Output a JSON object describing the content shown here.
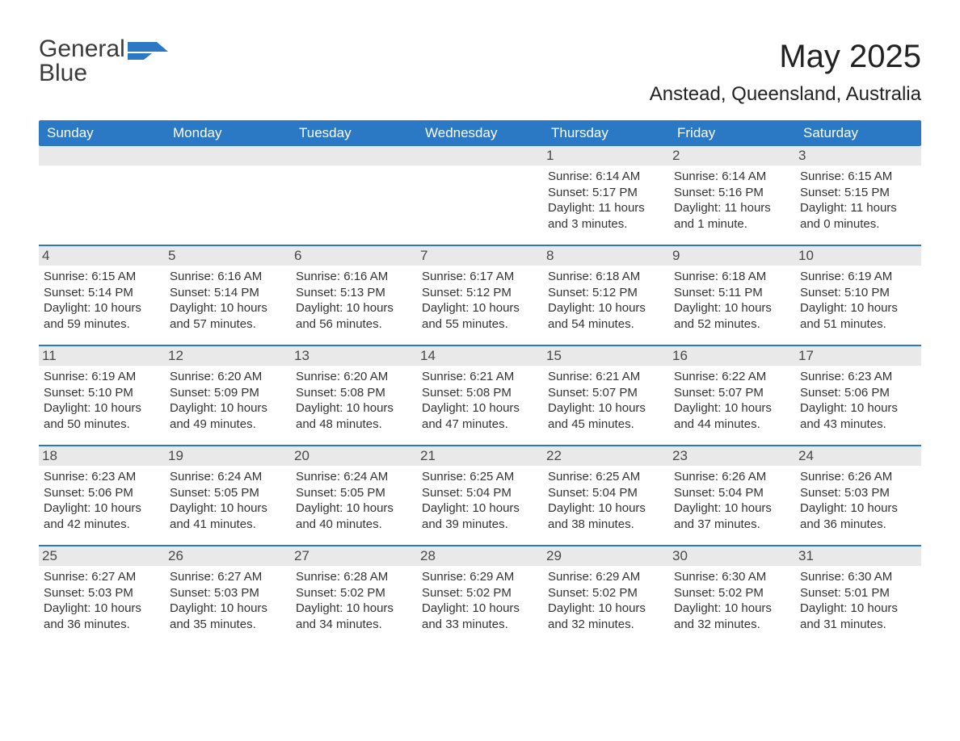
{
  "logo": {
    "text1": "General",
    "text2": "Blue",
    "text1_color": "#3b3b3b",
    "text2_color": "#2b78c4",
    "flag_color": "#2b78c4"
  },
  "title": "May 2025",
  "subtitle": "Anstead, Queensland, Australia",
  "colors": {
    "header_bg": "#2b78c4",
    "header_text": "#ffffff",
    "row_border": "#2b78c4",
    "daynum_bg": "#e9e9e9",
    "daynum_text": "#494949",
    "body_text": "#333333",
    "page_bg": "#ffffff"
  },
  "columns": [
    "Sunday",
    "Monday",
    "Tuesday",
    "Wednesday",
    "Thursday",
    "Friday",
    "Saturday"
  ],
  "weeks": [
    [
      {
        "n": "",
        "sunrise": "",
        "sunset": "",
        "daylight": ""
      },
      {
        "n": "",
        "sunrise": "",
        "sunset": "",
        "daylight": ""
      },
      {
        "n": "",
        "sunrise": "",
        "sunset": "",
        "daylight": ""
      },
      {
        "n": "",
        "sunrise": "",
        "sunset": "",
        "daylight": ""
      },
      {
        "n": "1",
        "sunrise": "Sunrise: 6:14 AM",
        "sunset": "Sunset: 5:17 PM",
        "daylight": "Daylight: 11 hours and 3 minutes."
      },
      {
        "n": "2",
        "sunrise": "Sunrise: 6:14 AM",
        "sunset": "Sunset: 5:16 PM",
        "daylight": "Daylight: 11 hours and 1 minute."
      },
      {
        "n": "3",
        "sunrise": "Sunrise: 6:15 AM",
        "sunset": "Sunset: 5:15 PM",
        "daylight": "Daylight: 11 hours and 0 minutes."
      }
    ],
    [
      {
        "n": "4",
        "sunrise": "Sunrise: 6:15 AM",
        "sunset": "Sunset: 5:14 PM",
        "daylight": "Daylight: 10 hours and 59 minutes."
      },
      {
        "n": "5",
        "sunrise": "Sunrise: 6:16 AM",
        "sunset": "Sunset: 5:14 PM",
        "daylight": "Daylight: 10 hours and 57 minutes."
      },
      {
        "n": "6",
        "sunrise": "Sunrise: 6:16 AM",
        "sunset": "Sunset: 5:13 PM",
        "daylight": "Daylight: 10 hours and 56 minutes."
      },
      {
        "n": "7",
        "sunrise": "Sunrise: 6:17 AM",
        "sunset": "Sunset: 5:12 PM",
        "daylight": "Daylight: 10 hours and 55 minutes."
      },
      {
        "n": "8",
        "sunrise": "Sunrise: 6:18 AM",
        "sunset": "Sunset: 5:12 PM",
        "daylight": "Daylight: 10 hours and 54 minutes."
      },
      {
        "n": "9",
        "sunrise": "Sunrise: 6:18 AM",
        "sunset": "Sunset: 5:11 PM",
        "daylight": "Daylight: 10 hours and 52 minutes."
      },
      {
        "n": "10",
        "sunrise": "Sunrise: 6:19 AM",
        "sunset": "Sunset: 5:10 PM",
        "daylight": "Daylight: 10 hours and 51 minutes."
      }
    ],
    [
      {
        "n": "11",
        "sunrise": "Sunrise: 6:19 AM",
        "sunset": "Sunset: 5:10 PM",
        "daylight": "Daylight: 10 hours and 50 minutes."
      },
      {
        "n": "12",
        "sunrise": "Sunrise: 6:20 AM",
        "sunset": "Sunset: 5:09 PM",
        "daylight": "Daylight: 10 hours and 49 minutes."
      },
      {
        "n": "13",
        "sunrise": "Sunrise: 6:20 AM",
        "sunset": "Sunset: 5:08 PM",
        "daylight": "Daylight: 10 hours and 48 minutes."
      },
      {
        "n": "14",
        "sunrise": "Sunrise: 6:21 AM",
        "sunset": "Sunset: 5:08 PM",
        "daylight": "Daylight: 10 hours and 47 minutes."
      },
      {
        "n": "15",
        "sunrise": "Sunrise: 6:21 AM",
        "sunset": "Sunset: 5:07 PM",
        "daylight": "Daylight: 10 hours and 45 minutes."
      },
      {
        "n": "16",
        "sunrise": "Sunrise: 6:22 AM",
        "sunset": "Sunset: 5:07 PM",
        "daylight": "Daylight: 10 hours and 44 minutes."
      },
      {
        "n": "17",
        "sunrise": "Sunrise: 6:23 AM",
        "sunset": "Sunset: 5:06 PM",
        "daylight": "Daylight: 10 hours and 43 minutes."
      }
    ],
    [
      {
        "n": "18",
        "sunrise": "Sunrise: 6:23 AM",
        "sunset": "Sunset: 5:06 PM",
        "daylight": "Daylight: 10 hours and 42 minutes."
      },
      {
        "n": "19",
        "sunrise": "Sunrise: 6:24 AM",
        "sunset": "Sunset: 5:05 PM",
        "daylight": "Daylight: 10 hours and 41 minutes."
      },
      {
        "n": "20",
        "sunrise": "Sunrise: 6:24 AM",
        "sunset": "Sunset: 5:05 PM",
        "daylight": "Daylight: 10 hours and 40 minutes."
      },
      {
        "n": "21",
        "sunrise": "Sunrise: 6:25 AM",
        "sunset": "Sunset: 5:04 PM",
        "daylight": "Daylight: 10 hours and 39 minutes."
      },
      {
        "n": "22",
        "sunrise": "Sunrise: 6:25 AM",
        "sunset": "Sunset: 5:04 PM",
        "daylight": "Daylight: 10 hours and 38 minutes."
      },
      {
        "n": "23",
        "sunrise": "Sunrise: 6:26 AM",
        "sunset": "Sunset: 5:04 PM",
        "daylight": "Daylight: 10 hours and 37 minutes."
      },
      {
        "n": "24",
        "sunrise": "Sunrise: 6:26 AM",
        "sunset": "Sunset: 5:03 PM",
        "daylight": "Daylight: 10 hours and 36 minutes."
      }
    ],
    [
      {
        "n": "25",
        "sunrise": "Sunrise: 6:27 AM",
        "sunset": "Sunset: 5:03 PM",
        "daylight": "Daylight: 10 hours and 36 minutes."
      },
      {
        "n": "26",
        "sunrise": "Sunrise: 6:27 AM",
        "sunset": "Sunset: 5:03 PM",
        "daylight": "Daylight: 10 hours and 35 minutes."
      },
      {
        "n": "27",
        "sunrise": "Sunrise: 6:28 AM",
        "sunset": "Sunset: 5:02 PM",
        "daylight": "Daylight: 10 hours and 34 minutes."
      },
      {
        "n": "28",
        "sunrise": "Sunrise: 6:29 AM",
        "sunset": "Sunset: 5:02 PM",
        "daylight": "Daylight: 10 hours and 33 minutes."
      },
      {
        "n": "29",
        "sunrise": "Sunrise: 6:29 AM",
        "sunset": "Sunset: 5:02 PM",
        "daylight": "Daylight: 10 hours and 32 minutes."
      },
      {
        "n": "30",
        "sunrise": "Sunrise: 6:30 AM",
        "sunset": "Sunset: 5:02 PM",
        "daylight": "Daylight: 10 hours and 32 minutes."
      },
      {
        "n": "31",
        "sunrise": "Sunrise: 6:30 AM",
        "sunset": "Sunset: 5:01 PM",
        "daylight": "Daylight: 10 hours and 31 minutes."
      }
    ]
  ]
}
